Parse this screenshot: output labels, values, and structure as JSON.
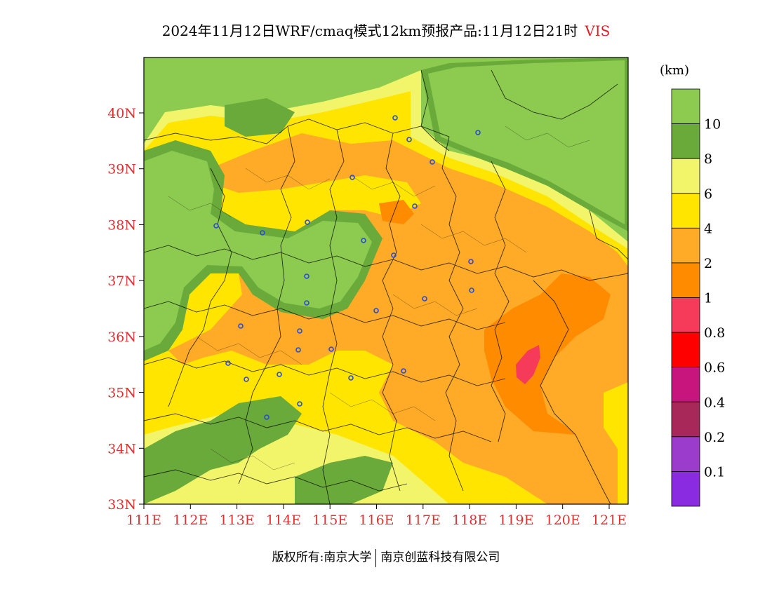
{
  "title": {
    "main": "2024年11月12日WRF/cmaq模式12km预报产品:11月12日21时",
    "variable": "VIS"
  },
  "axes": {
    "lat_labels": [
      "40N",
      "39N",
      "38N",
      "37N",
      "36N",
      "35N",
      "34N",
      "33N"
    ],
    "lon_labels": [
      "111E",
      "112E",
      "113E",
      "114E",
      "115E",
      "116E",
      "117E",
      "118E",
      "119E",
      "120E",
      "121E"
    ]
  },
  "legend": {
    "unit": "(km)",
    "labels": [
      "10",
      "8",
      "6",
      "4",
      "2",
      "1",
      "0.8",
      "0.6",
      "0.4",
      "0.2",
      "0.1"
    ],
    "colors": [
      "#8ccb50",
      "#6aaa3a",
      "#f2f56a",
      "#ffe500",
      "#ffab28",
      "#ff8c00",
      "#f53a5a",
      "#ff0000",
      "#c8157e",
      "#a8285a",
      "#9b3ccc",
      "#8a2be2"
    ]
  },
  "copyright": {
    "left": "版权所有:南京大学",
    "right": "南京创蓝科技有限公司"
  },
  "colors": {
    "axis_text": "#e03030",
    "city_marker": "#2a4bd7",
    "boundary": "#000000"
  }
}
